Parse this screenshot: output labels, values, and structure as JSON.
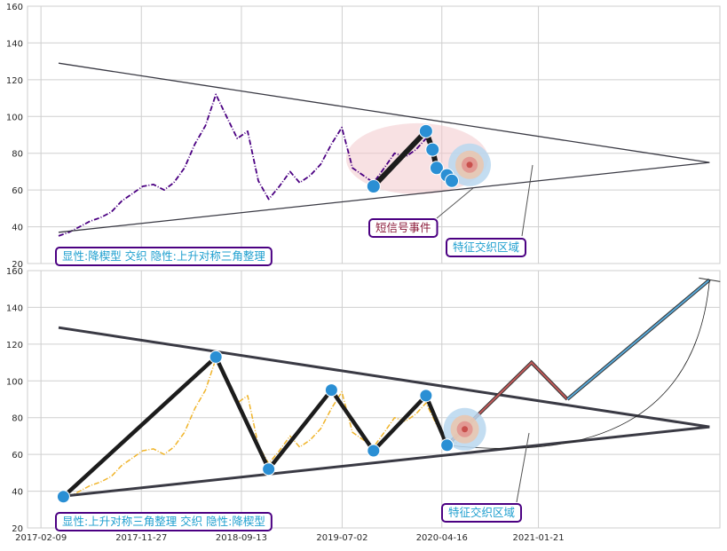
{
  "colors": {
    "panel_bg": "#eaeaf2",
    "grid": "#cfcfcf",
    "price_top": "#4b0082",
    "price_bottom": "#f0b429",
    "triangle": "#3a3a44",
    "zigzag": "#1c1c1c",
    "marker": "#2a8fd4",
    "box_border": "#4b0082",
    "box_text": "#1e9fcf",
    "event_text": "#8b1a3a",
    "ellipse_fill": "#f2c9cc",
    "projection_red": "#c25a5a",
    "projection_blue": "#59a9d8"
  },
  "chart_data": [
    {
      "type": "line",
      "panel": "top",
      "ylim": [
        20,
        160
      ],
      "yticks": [
        "20",
        "40",
        "60",
        "80",
        "100",
        "120",
        "140",
        "160"
      ],
      "xlim": [
        "2017-01-01",
        "2022-07-01"
      ],
      "series": [
        {
          "values": [
            [
              "2017-04-01",
              35
            ],
            [
              "2017-05-01",
              37
            ],
            [
              "2017-06-01",
              40
            ],
            [
              "2017-07-01",
              43
            ],
            [
              "2017-08-01",
              45
            ],
            [
              "2017-09-01",
              48
            ],
            [
              "2017-10-01",
              54
            ],
            [
              "2017-11-01",
              58
            ],
            [
              "2017-12-01",
              62
            ],
            [
              "2018-01-01",
              63
            ],
            [
              "2018-02-01",
              60
            ],
            [
              "2018-03-01",
              64
            ],
            [
              "2018-04-01",
              72
            ],
            [
              "2018-05-01",
              85
            ],
            [
              "2018-06-01",
              95
            ],
            [
              "2018-07-01",
              112
            ],
            [
              "2018-08-01",
              100
            ],
            [
              "2018-09-01",
              88
            ],
            [
              "2018-10-01",
              92
            ],
            [
              "2018-11-01",
              65
            ],
            [
              "2018-12-01",
              55
            ],
            [
              "2019-01-01",
              62
            ],
            [
              "2019-02-01",
              70
            ],
            [
              "2019-03-01",
              64
            ],
            [
              "2019-04-01",
              68
            ],
            [
              "2019-05-01",
              74
            ],
            [
              "2019-06-01",
              85
            ],
            [
              "2019-07-01",
              94
            ],
            [
              "2019-08-01",
              72
            ],
            [
              "2019-09-01",
              68
            ],
            [
              "2019-10-01",
              64
            ],
            [
              "2019-11-01",
              72
            ],
            [
              "2019-12-01",
              80
            ],
            [
              "2020-01-01",
              78
            ],
            [
              "2020-02-01",
              82
            ],
            [
              "2020-03-01",
              88
            ],
            [
              "2020-04-01",
              76
            ],
            [
              "2020-05-01",
              68
            ],
            [
              "2020-06-01",
              66
            ]
          ]
        }
      ],
      "annotations": {
        "triangle_upper": [
          [
            "2017-04-01",
            129
          ],
          [
            "2022-06-01",
            75
          ]
        ],
        "triangle_lower": [
          [
            "2017-04-01",
            37
          ],
          [
            "2022-06-01",
            75
          ]
        ],
        "zigzag": [
          [
            "2019-10-01",
            62
          ],
          [
            "2020-03-01",
            92
          ],
          [
            "2020-03-20",
            82
          ],
          [
            "2020-04-01",
            72
          ],
          [
            "2020-05-01",
            68
          ],
          [
            "2020-05-15",
            65
          ]
        ],
        "event_label": "短信号事件",
        "zone_label": "特征交织区域",
        "legend": "显性:降楔型 交织 隐性:上升对称三角整理"
      }
    },
    {
      "type": "line",
      "panel": "bottom",
      "ylim": [
        20,
        160
      ],
      "yticks": [
        "20",
        "40",
        "60",
        "80",
        "100",
        "120",
        "140",
        "160"
      ],
      "xlim": [
        "2017-01-01",
        "2022-07-01"
      ],
      "xticks": [
        "2017-02-09",
        "2017-11-27",
        "2018-09-13",
        "2019-07-02",
        "2020-04-16",
        "2021-01-21"
      ],
      "series": [
        {
          "values": [
            [
              "2017-04-01",
              35
            ],
            [
              "2017-05-01",
              37
            ],
            [
              "2017-06-01",
              40
            ],
            [
              "2017-07-01",
              43
            ],
            [
              "2017-08-01",
              45
            ],
            [
              "2017-09-01",
              48
            ],
            [
              "2017-10-01",
              54
            ],
            [
              "2017-11-01",
              58
            ],
            [
              "2017-12-01",
              62
            ],
            [
              "2018-01-01",
              63
            ],
            [
              "2018-02-01",
              60
            ],
            [
              "2018-03-01",
              64
            ],
            [
              "2018-04-01",
              72
            ],
            [
              "2018-05-01",
              85
            ],
            [
              "2018-06-01",
              95
            ],
            [
              "2018-07-01",
              112
            ],
            [
              "2018-08-01",
              100
            ],
            [
              "2018-09-01",
              88
            ],
            [
              "2018-10-01",
              92
            ],
            [
              "2018-11-01",
              65
            ],
            [
              "2018-12-01",
              55
            ],
            [
              "2019-01-01",
              62
            ],
            [
              "2019-02-01",
              70
            ],
            [
              "2019-03-01",
              64
            ],
            [
              "2019-04-01",
              68
            ],
            [
              "2019-05-01",
              74
            ],
            [
              "2019-06-01",
              85
            ],
            [
              "2019-07-01",
              94
            ],
            [
              "2019-08-01",
              72
            ],
            [
              "2019-09-01",
              68
            ],
            [
              "2019-10-01",
              64
            ],
            [
              "2019-11-01",
              72
            ],
            [
              "2019-12-01",
              80
            ],
            [
              "2020-01-01",
              78
            ],
            [
              "2020-02-01",
              82
            ],
            [
              "2020-03-01",
              88
            ],
            [
              "2020-04-01",
              76
            ],
            [
              "2020-05-01",
              68
            ],
            [
              "2020-06-01",
              66
            ]
          ]
        }
      ],
      "annotations": {
        "triangle_upper": [
          [
            "2017-04-01",
            129
          ],
          [
            "2022-06-01",
            75
          ]
        ],
        "triangle_lower": [
          [
            "2017-04-01",
            37
          ],
          [
            "2022-06-01",
            75
          ]
        ],
        "zigzag": [
          [
            "2017-04-15",
            37
          ],
          [
            "2018-07-01",
            113
          ],
          [
            "2018-12-01",
            52
          ],
          [
            "2019-06-01",
            95
          ],
          [
            "2019-10-01",
            62
          ],
          [
            "2020-03-01",
            92
          ],
          [
            "2020-05-01",
            65
          ]
        ],
        "projection_red": [
          [
            "2020-05-01",
            65
          ],
          [
            "2021-01-01",
            110
          ],
          [
            "2021-04-15",
            90
          ]
        ],
        "projection_blue": [
          [
            "2021-04-15",
            90
          ],
          [
            "2022-06-01",
            155
          ]
        ],
        "zone_label": "特征交织区域",
        "legend": "显性:上升对称三角整理 交织 隐性:降楔型"
      }
    }
  ]
}
